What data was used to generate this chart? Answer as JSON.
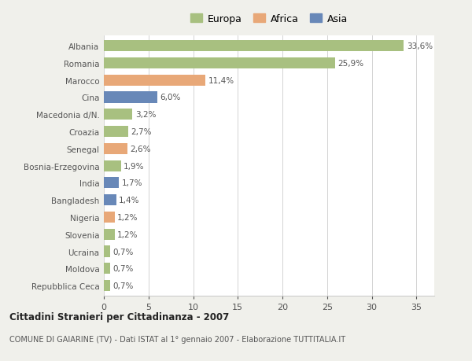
{
  "categories": [
    "Albania",
    "Romania",
    "Marocco",
    "Cina",
    "Macedonia d/N.",
    "Croazia",
    "Senegal",
    "Bosnia-Erzegovina",
    "India",
    "Bangladesh",
    "Nigeria",
    "Slovenia",
    "Ucraina",
    "Moldova",
    "Repubblica Ceca"
  ],
  "values": [
    33.6,
    25.9,
    11.4,
    6.0,
    3.2,
    2.7,
    2.6,
    1.9,
    1.7,
    1.4,
    1.2,
    1.2,
    0.7,
    0.7,
    0.7
  ],
  "labels": [
    "33,6%",
    "25,9%",
    "11,4%",
    "6,0%",
    "3,2%",
    "2,7%",
    "2,6%",
    "1,9%",
    "1,7%",
    "1,4%",
    "1,2%",
    "1,2%",
    "0,7%",
    "0,7%",
    "0,7%"
  ],
  "continents": [
    "Europa",
    "Europa",
    "Africa",
    "Asia",
    "Europa",
    "Europa",
    "Africa",
    "Europa",
    "Asia",
    "Asia",
    "Africa",
    "Europa",
    "Europa",
    "Europa",
    "Europa"
  ],
  "colors": {
    "Europa": "#a8c080",
    "Africa": "#e8a878",
    "Asia": "#6888b8"
  },
  "legend_labels": [
    "Europa",
    "Africa",
    "Asia"
  ],
  "legend_colors": [
    "#a8c080",
    "#e8a878",
    "#6888b8"
  ],
  "title": "Cittadini Stranieri per Cittadinanza - 2007",
  "subtitle": "COMUNE DI GAIARINE (TV) - Dati ISTAT al 1° gennaio 2007 - Elaborazione TUTTITALIA.IT",
  "xlim": [
    0,
    37
  ],
  "xticks": [
    0,
    5,
    10,
    15,
    20,
    25,
    30,
    35
  ],
  "background_color": "#f0f0eb",
  "plot_background": "#ffffff",
  "grid_color": "#cccccc",
  "bar_height": 0.65
}
